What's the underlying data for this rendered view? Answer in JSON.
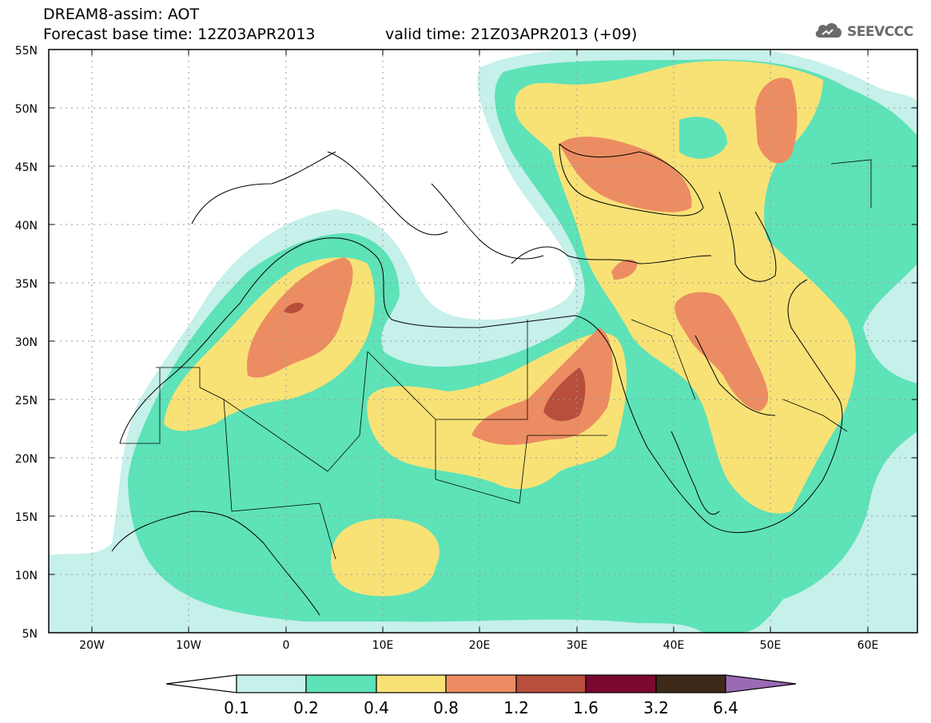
{
  "header": {
    "title": "DREAM8-assim: AOT",
    "base_time": "Forecast base time: 12Z03APR2013",
    "valid_time": "valid time: 21Z03APR2013 (+09)"
  },
  "logo": {
    "text": "SEEVCCC",
    "icon": "cloud-icon"
  },
  "map": {
    "lat_labels": [
      "55N",
      "50N",
      "45N",
      "40N",
      "35N",
      "30N",
      "25N",
      "20N",
      "15N",
      "10N",
      "5N"
    ],
    "lon_labels": [
      "20W",
      "10W",
      "0",
      "10E",
      "20E",
      "30E",
      "40E",
      "50E",
      "60E"
    ],
    "lon_range": [
      -25,
      65
    ],
    "lat_range": [
      5,
      55
    ],
    "gridlines": "dotted"
  },
  "legend": {
    "labels": [
      "0.1",
      "0.2",
      "0.4",
      "0.8",
      "1.2",
      "1.6",
      "3.2",
      "6.4"
    ],
    "colors": [
      "#ffffff",
      "#c6f0ea",
      "#5ee2b8",
      "#f8e276",
      "#ec8c62",
      "#b84e3c",
      "#7a0830",
      "#3e2a18",
      "#9a6ab4"
    ]
  }
}
